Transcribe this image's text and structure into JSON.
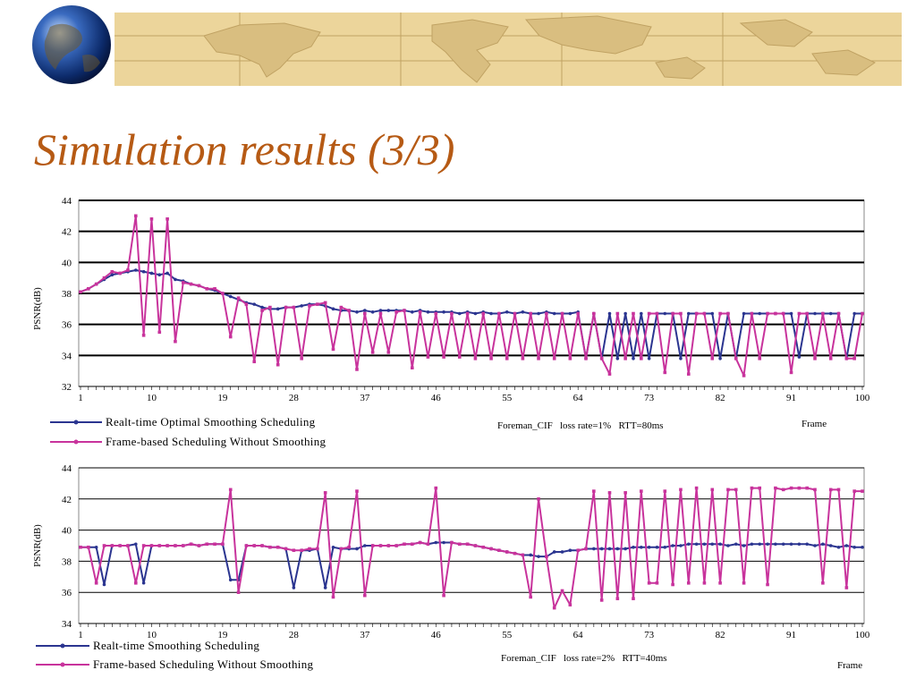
{
  "slide": {
    "title": "Simulation results (3/3)"
  },
  "colors": {
    "title": "#b65a14",
    "series_optimal": "#2b3590",
    "series_frame": "#c8339c",
    "banner_bg": "#e9d39a",
    "banner_map": "#c9ad6e"
  },
  "banner": {
    "globe_icon": "globe-icon",
    "map_icon": "world-map-icon"
  },
  "chart_data": [
    {
      "type": "line",
      "ylabel": "PSNR(dB)",
      "xlabel": "Frame",
      "ylim": [
        32,
        44
      ],
      "yticks": [
        "32",
        "34",
        "36",
        "38",
        "40",
        "42",
        "44"
      ],
      "xlim": [
        1,
        100
      ],
      "xticks": [
        "1",
        "10",
        "19",
        "28",
        "37",
        "46",
        "55",
        "64",
        "73",
        "82",
        "91",
        "100"
      ],
      "grid": "horizontal",
      "annotation": "Foreman_CIF   loss rate=1%   RTT=80ms",
      "legend_position": "bottom-left",
      "x": [
        1,
        2,
        3,
        4,
        5,
        6,
        7,
        8,
        9,
        10,
        11,
        12,
        13,
        14,
        15,
        16,
        17,
        18,
        19,
        20,
        21,
        22,
        23,
        24,
        25,
        26,
        27,
        28,
        29,
        30,
        31,
        32,
        33,
        34,
        35,
        36,
        37,
        38,
        39,
        40,
        41,
        42,
        43,
        44,
        45,
        46,
        47,
        48,
        49,
        50,
        51,
        52,
        53,
        54,
        55,
        56,
        57,
        58,
        59,
        60,
        61,
        62,
        63,
        64,
        65,
        66,
        67,
        68,
        69,
        70,
        71,
        72,
        73,
        74,
        75,
        76,
        77,
        78,
        79,
        80,
        81,
        82,
        83,
        84,
        85,
        86,
        87,
        88,
        89,
        90,
        91,
        92,
        93,
        94,
        95,
        96,
        97,
        98,
        99,
        100
      ],
      "series": [
        {
          "name": "Realt-time Optimal Smoothing Scheduling",
          "values": [
            38.1,
            38.3,
            38.6,
            38.9,
            39.2,
            39.3,
            39.4,
            39.5,
            39.4,
            39.3,
            39.2,
            39.3,
            38.9,
            38.8,
            38.6,
            38.5,
            38.3,
            38.2,
            38.0,
            37.8,
            37.6,
            37.4,
            37.3,
            37.1,
            37.0,
            37.0,
            37.1,
            37.1,
            37.2,
            37.3,
            37.3,
            37.2,
            37.0,
            36.9,
            36.9,
            36.8,
            36.9,
            36.8,
            36.9,
            36.9,
            36.9,
            36.9,
            36.8,
            36.9,
            36.8,
            36.8,
            36.8,
            36.8,
            36.7,
            36.8,
            36.7,
            36.8,
            36.7,
            36.7,
            36.8,
            36.7,
            36.8,
            36.7,
            36.7,
            36.8,
            36.7,
            36.7,
            36.7,
            36.8,
            33.8,
            36.7,
            33.8,
            36.7,
            33.8,
            36.7,
            33.8,
            36.7,
            33.8,
            36.7,
            36.7,
            36.7,
            33.8,
            36.7,
            36.7,
            36.7,
            36.7,
            33.8,
            36.7,
            33.8,
            36.7,
            36.7,
            36.7,
            36.7,
            36.7,
            36.7,
            36.7,
            33.9,
            36.7,
            36.7,
            36.7,
            36.7,
            36.7,
            33.8,
            36.7,
            36.7
          ]
        },
        {
          "name": "Frame-based Scheduling Without Smoothing",
          "values": [
            38.1,
            38.3,
            38.6,
            39.0,
            39.4,
            39.3,
            39.5,
            43.0,
            35.3,
            42.8,
            35.5,
            42.8,
            34.9,
            38.7,
            38.6,
            38.5,
            38.3,
            38.3,
            38.0,
            35.2,
            37.7,
            37.3,
            33.6,
            36.9,
            37.1,
            33.4,
            37.1,
            37.1,
            33.8,
            37.2,
            37.3,
            37.4,
            34.4,
            37.1,
            36.9,
            33.1,
            36.7,
            34.2,
            36.7,
            34.2,
            36.8,
            36.9,
            33.2,
            36.8,
            33.9,
            36.7,
            33.9,
            36.7,
            33.9,
            36.7,
            33.8,
            36.7,
            33.8,
            36.7,
            33.8,
            36.7,
            33.8,
            36.7,
            33.8,
            36.7,
            33.8,
            36.7,
            33.8,
            36.7,
            33.8,
            36.7,
            33.8,
            32.8,
            36.7,
            33.8,
            36.7,
            33.8,
            36.7,
            36.7,
            32.9,
            36.7,
            36.7,
            32.8,
            36.7,
            36.7,
            33.8,
            36.7,
            36.7,
            33.8,
            32.7,
            36.7,
            33.8,
            36.7,
            36.7,
            36.7,
            32.9,
            36.7,
            36.7,
            33.8,
            36.7,
            33.8,
            36.7,
            33.8,
            33.8,
            36.7
          ]
        }
      ]
    },
    {
      "type": "line",
      "ylabel": "PSNR(dB)",
      "xlabel": "Frame",
      "ylim": [
        34,
        44
      ],
      "yticks": [
        "34",
        "36",
        "38",
        "40",
        "42",
        "44"
      ],
      "xlim": [
        1,
        100
      ],
      "xticks": [
        "1",
        "10",
        "19",
        "28",
        "37",
        "46",
        "55",
        "64",
        "73",
        "82",
        "91",
        "100"
      ],
      "grid": "horizontal",
      "annotation": "Foreman_CIF   loss rate=2%   RTT=40ms",
      "legend_position": "bottom-left",
      "x": [
        1,
        2,
        3,
        4,
        5,
        6,
        7,
        8,
        9,
        10,
        11,
        12,
        13,
        14,
        15,
        16,
        17,
        18,
        19,
        20,
        21,
        22,
        23,
        24,
        25,
        26,
        27,
        28,
        29,
        30,
        31,
        32,
        33,
        34,
        35,
        36,
        37,
        38,
        39,
        40,
        41,
        42,
        43,
        44,
        45,
        46,
        47,
        48,
        49,
        50,
        51,
        52,
        53,
        54,
        55,
        56,
        57,
        58,
        59,
        60,
        61,
        62,
        63,
        64,
        65,
        66,
        67,
        68,
        69,
        70,
        71,
        72,
        73,
        74,
        75,
        76,
        77,
        78,
        79,
        80,
        81,
        82,
        83,
        84,
        85,
        86,
        87,
        88,
        89,
        90,
        91,
        92,
        93,
        94,
        95,
        96,
        97,
        98,
        99,
        100
      ],
      "series": [
        {
          "name": "Realt-time Smoothing Scheduling",
          "values": [
            38.9,
            38.9,
            38.9,
            36.5,
            39.0,
            39.0,
            39.0,
            39.1,
            36.6,
            39.0,
            39.0,
            39.0,
            39.0,
            39.0,
            39.1,
            39.0,
            39.1,
            39.1,
            39.1,
            36.8,
            36.8,
            39.0,
            39.0,
            39.0,
            38.9,
            38.9,
            38.8,
            36.3,
            38.7,
            38.7,
            38.8,
            36.3,
            38.9,
            38.8,
            38.8,
            38.8,
            39.0,
            39.0,
            39.0,
            39.0,
            39.0,
            39.1,
            39.1,
            39.2,
            39.1,
            39.2,
            39.2,
            39.2,
            39.1,
            39.1,
            39.0,
            38.9,
            38.8,
            38.7,
            38.6,
            38.5,
            38.4,
            38.4,
            38.3,
            38.3,
            38.6,
            38.6,
            38.7,
            38.7,
            38.8,
            38.8,
            38.8,
            38.8,
            38.8,
            38.8,
            38.9,
            38.9,
            38.9,
            38.9,
            38.9,
            39.0,
            39.0,
            39.1,
            39.1,
            39.1,
            39.1,
            39.1,
            39.0,
            39.1,
            39.0,
            39.1,
            39.1,
            39.1,
            39.1,
            39.1,
            39.1,
            39.1,
            39.1,
            39.0,
            39.1,
            39.0,
            38.9,
            39.0,
            38.9,
            38.9
          ]
        },
        {
          "name": "Frame-based Scheduling Without Smoothing",
          "values": [
            38.9,
            38.9,
            36.6,
            39.0,
            39.0,
            39.0,
            39.0,
            36.6,
            39.0,
            39.0,
            39.0,
            39.0,
            39.0,
            39.0,
            39.1,
            39.0,
            39.1,
            39.1,
            39.1,
            42.6,
            36.0,
            39.0,
            39.0,
            39.0,
            38.9,
            38.9,
            38.8,
            38.7,
            38.7,
            38.8,
            38.8,
            42.4,
            35.7,
            38.8,
            38.9,
            42.5,
            35.8,
            39.0,
            39.0,
            39.0,
            39.0,
            39.1,
            39.1,
            39.2,
            39.1,
            42.7,
            35.8,
            39.2,
            39.1,
            39.1,
            39.0,
            38.9,
            38.8,
            38.7,
            38.6,
            38.5,
            38.4,
            35.7,
            42.0,
            38.3,
            35.0,
            36.1,
            35.2,
            38.7,
            38.8,
            42.5,
            35.5,
            42.4,
            35.6,
            42.4,
            35.6,
            42.5,
            36.6,
            36.6,
            42.5,
            36.5,
            42.6,
            36.6,
            42.7,
            36.6,
            42.6,
            36.6,
            42.6,
            42.6,
            36.6,
            42.7,
            42.7,
            36.5,
            42.7,
            42.6,
            42.7,
            42.7,
            42.7,
            42.6,
            36.6,
            42.6,
            42.6,
            36.3,
            42.5,
            42.5
          ]
        }
      ]
    }
  ]
}
